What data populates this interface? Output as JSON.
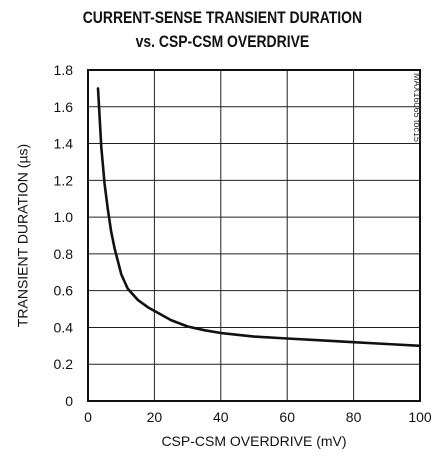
{
  "title_lines": [
    "CURRENT-SENSE TRANSIENT DURATION",
    "vs. CSP-CSM OVERDRIVE"
  ],
  "watermark": "MAX16065 toc15",
  "chart_data": {
    "type": "line",
    "title": "CURRENT-SENSE TRANSIENT DURATION vs. CSP-CSM OVERDRIVE",
    "xlabel": "CSP-CSM OVERDRIVE (mV)",
    "ylabel": "TRANSIENT DURATION (µs)",
    "xlim": [
      0,
      100
    ],
    "ylim": [
      0,
      1.8
    ],
    "xticks": [
      0,
      20,
      40,
      60,
      80,
      100
    ],
    "xtick_labels": [
      "0",
      "20",
      "40",
      "60",
      "80",
      "100"
    ],
    "yticks": [
      0,
      0.2,
      0.4,
      0.6,
      0.8,
      1.0,
      1.2,
      1.4,
      1.6,
      1.8
    ],
    "ytick_labels": [
      "0",
      "0.2",
      "0.4",
      "0.6",
      "0.8",
      "1.0",
      "1.2",
      "1.4",
      "1.6",
      "1.8"
    ],
    "grid": true,
    "series": [
      {
        "x": [
          3,
          4,
          5,
          6,
          7,
          8,
          9,
          10,
          12,
          15,
          18,
          20,
          25,
          30,
          35,
          40,
          45,
          50,
          60,
          70,
          80,
          90,
          100
        ],
        "y": [
          1.7,
          1.38,
          1.18,
          1.04,
          0.92,
          0.83,
          0.76,
          0.69,
          0.61,
          0.55,
          0.51,
          0.49,
          0.44,
          0.405,
          0.385,
          0.37,
          0.36,
          0.35,
          0.34,
          0.33,
          0.32,
          0.31,
          0.3
        ]
      }
    ]
  }
}
